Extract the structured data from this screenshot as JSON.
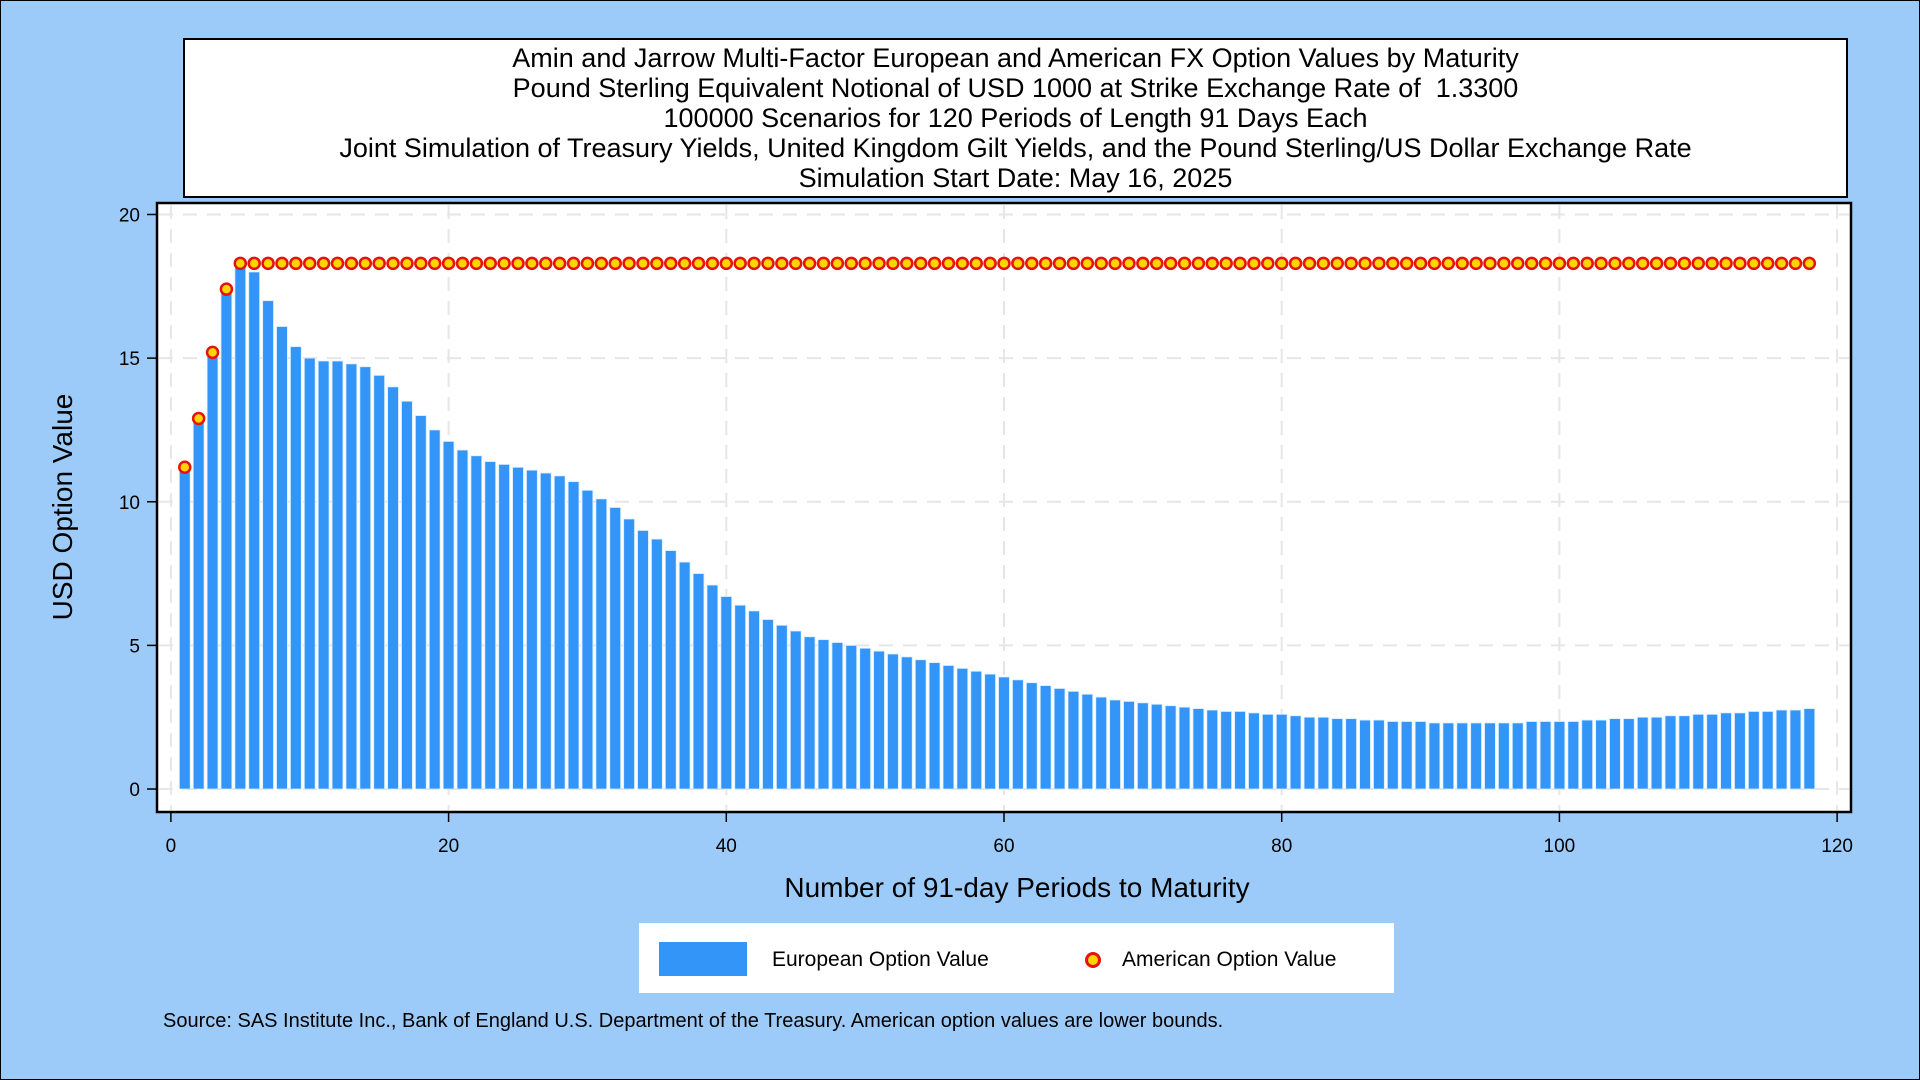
{
  "title_lines": [
    "Amin and Jarrow Multi-Factor European and American FX Option Values by Maturity",
    "Pound Sterling Equivalent Notional of USD 1000 at Strike Exchange Rate of  1.3300",
    "100000 Scenarios for 120 Periods of Length 91 Days Each",
    "Joint Simulation of Treasury Yields, United Kingdom Gilt Yields, and the Pound Sterling/US Dollar Exchange Rate",
    "Simulation Start Date: May 16, 2025"
  ],
  "legend": {
    "european": "European Option Value",
    "american": "American Option Value"
  },
  "footnote": "Source: SAS Institute Inc., Bank of England U.S. Department of the Treasury. American option values are lower bounds.",
  "colors": {
    "background": "#9dcbf9",
    "bar": "#3395f7",
    "marker_fill": "#ffd400",
    "marker_edge": "#e8120c"
  },
  "chart_data": {
    "type": "bar",
    "xlabel": "Number of 91-day Periods to Maturity",
    "ylabel": "USD Option Value",
    "xlim": [
      -1,
      121
    ],
    "ylim": [
      -0.8,
      20.4
    ],
    "xticks": [
      0,
      20,
      40,
      60,
      80,
      100,
      120
    ],
    "yticks": [
      0,
      5,
      10,
      15,
      20
    ],
    "grid": true,
    "legend_position": "bottom",
    "series": [
      {
        "name": "European Option Value",
        "type": "bar",
        "x": [
          1,
          2,
          3,
          4,
          5,
          6,
          7,
          8,
          9,
          10,
          11,
          12,
          13,
          14,
          15,
          16,
          17,
          18,
          19,
          20,
          21,
          22,
          23,
          24,
          25,
          26,
          27,
          28,
          29,
          30,
          31,
          32,
          33,
          34,
          35,
          36,
          37,
          38,
          39,
          40,
          41,
          42,
          43,
          44,
          45,
          46,
          47,
          48,
          49,
          50,
          51,
          52,
          53,
          54,
          55,
          56,
          57,
          58,
          59,
          60,
          61,
          62,
          63,
          64,
          65,
          66,
          67,
          68,
          69,
          70,
          71,
          72,
          73,
          74,
          75,
          76,
          77,
          78,
          79,
          80,
          81,
          82,
          83,
          84,
          85,
          86,
          87,
          88,
          89,
          90,
          91,
          92,
          93,
          94,
          95,
          96,
          97,
          98,
          99,
          100,
          101,
          102,
          103,
          104,
          105,
          106,
          107,
          108,
          109,
          110,
          111,
          112,
          113,
          114,
          115,
          116,
          117,
          118
        ],
        "values": [
          11.1,
          12.8,
          15.2,
          17.3,
          18.3,
          18.0,
          17.0,
          16.1,
          15.4,
          15.0,
          14.9,
          14.9,
          14.8,
          14.7,
          14.4,
          14.0,
          13.5,
          13.0,
          12.5,
          12.1,
          11.8,
          11.6,
          11.4,
          11.3,
          11.2,
          11.1,
          11.0,
          10.9,
          10.7,
          10.4,
          10.1,
          9.8,
          9.4,
          9.0,
          8.7,
          8.3,
          7.9,
          7.5,
          7.1,
          6.7,
          6.4,
          6.2,
          5.9,
          5.7,
          5.5,
          5.3,
          5.2,
          5.1,
          5.0,
          4.9,
          4.8,
          4.7,
          4.6,
          4.5,
          4.4,
          4.3,
          4.2,
          4.1,
          4.0,
          3.9,
          3.8,
          3.7,
          3.6,
          3.5,
          3.4,
          3.3,
          3.2,
          3.1,
          3.05,
          3.0,
          2.95,
          2.9,
          2.85,
          2.8,
          2.75,
          2.7,
          2.7,
          2.65,
          2.6,
          2.6,
          2.55,
          2.5,
          2.5,
          2.45,
          2.45,
          2.4,
          2.4,
          2.35,
          2.35,
          2.35,
          2.3,
          2.3,
          2.3,
          2.3,
          2.3,
          2.3,
          2.3,
          2.35,
          2.35,
          2.35,
          2.35,
          2.4,
          2.4,
          2.45,
          2.45,
          2.5,
          2.5,
          2.55,
          2.55,
          2.6,
          2.6,
          2.65,
          2.65,
          2.7,
          2.7,
          2.75,
          2.75,
          2.8
        ]
      },
      {
        "name": "American Option Value",
        "type": "scatter",
        "x": [
          1,
          2,
          3,
          4,
          5,
          6,
          7,
          8,
          9,
          10,
          11,
          12,
          13,
          14,
          15,
          16,
          17,
          18,
          19,
          20,
          21,
          22,
          23,
          24,
          25,
          26,
          27,
          28,
          29,
          30,
          31,
          32,
          33,
          34,
          35,
          36,
          37,
          38,
          39,
          40,
          41,
          42,
          43,
          44,
          45,
          46,
          47,
          48,
          49,
          50,
          51,
          52,
          53,
          54,
          55,
          56,
          57,
          58,
          59,
          60,
          61,
          62,
          63,
          64,
          65,
          66,
          67,
          68,
          69,
          70,
          71,
          72,
          73,
          74,
          75,
          76,
          77,
          78,
          79,
          80,
          81,
          82,
          83,
          84,
          85,
          86,
          87,
          88,
          89,
          90,
          91,
          92,
          93,
          94,
          95,
          96,
          97,
          98,
          99,
          100,
          101,
          102,
          103,
          104,
          105,
          106,
          107,
          108,
          109,
          110,
          111,
          112,
          113,
          114,
          115,
          116,
          117,
          118
        ],
        "values": [
          11.2,
          12.9,
          15.2,
          17.4,
          18.3,
          18.3,
          18.3,
          18.3,
          18.3,
          18.3,
          18.3,
          18.3,
          18.3,
          18.3,
          18.3,
          18.3,
          18.3,
          18.3,
          18.3,
          18.3,
          18.3,
          18.3,
          18.3,
          18.3,
          18.3,
          18.3,
          18.3,
          18.3,
          18.3,
          18.3,
          18.3,
          18.3,
          18.3,
          18.3,
          18.3,
          18.3,
          18.3,
          18.3,
          18.3,
          18.3,
          18.3,
          18.3,
          18.3,
          18.3,
          18.3,
          18.3,
          18.3,
          18.3,
          18.3,
          18.3,
          18.3,
          18.3,
          18.3,
          18.3,
          18.3,
          18.3,
          18.3,
          18.3,
          18.3,
          18.3,
          18.3,
          18.3,
          18.3,
          18.3,
          18.3,
          18.3,
          18.3,
          18.3,
          18.3,
          18.3,
          18.3,
          18.3,
          18.3,
          18.3,
          18.3,
          18.3,
          18.3,
          18.3,
          18.3,
          18.3,
          18.3,
          18.3,
          18.3,
          18.3,
          18.3,
          18.3,
          18.3,
          18.3,
          18.3,
          18.3,
          18.3,
          18.3,
          18.3,
          18.3,
          18.3,
          18.3,
          18.3,
          18.3,
          18.3,
          18.3,
          18.3,
          18.3,
          18.3,
          18.3,
          18.3,
          18.3,
          18.3,
          18.3,
          18.3,
          18.3,
          18.3,
          18.3,
          18.3,
          18.3,
          18.3,
          18.3,
          18.3,
          18.3
        ]
      }
    ]
  }
}
